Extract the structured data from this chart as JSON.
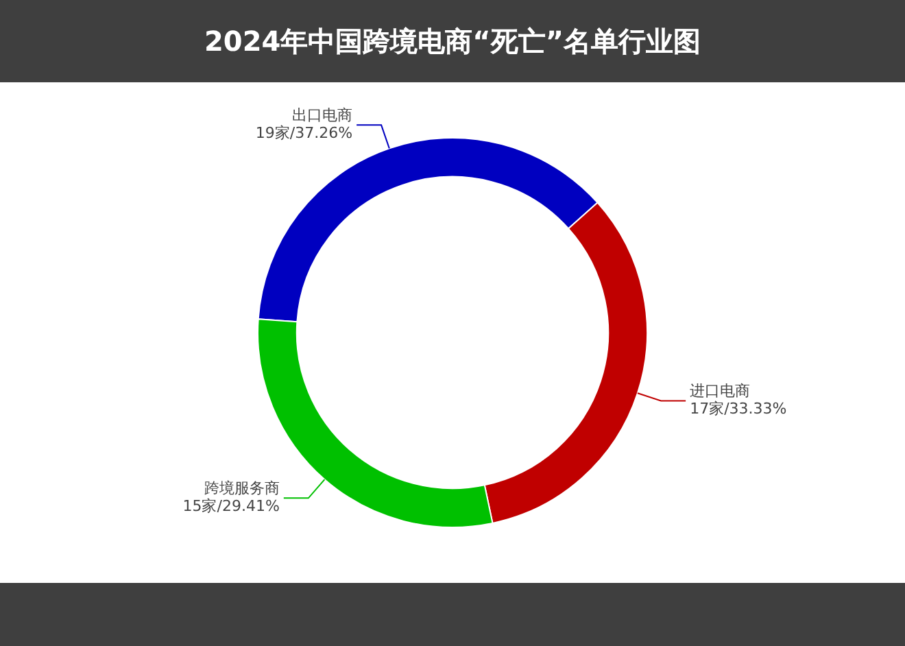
{
  "chart_data": {
    "type": "donut",
    "title": "2024年中国跨境电商“死亡”名单行业图",
    "categories": [
      "出口电商",
      "进口电商",
      "跨境服务商"
    ],
    "values": [
      19,
      17,
      15
    ],
    "value_labels": [
      "19家/37.26%",
      "17家/33.33%",
      "15家/29.41%"
    ],
    "colors": [
      "#0000c0",
      "#c00000",
      "#00c000"
    ],
    "legend": false
  }
}
